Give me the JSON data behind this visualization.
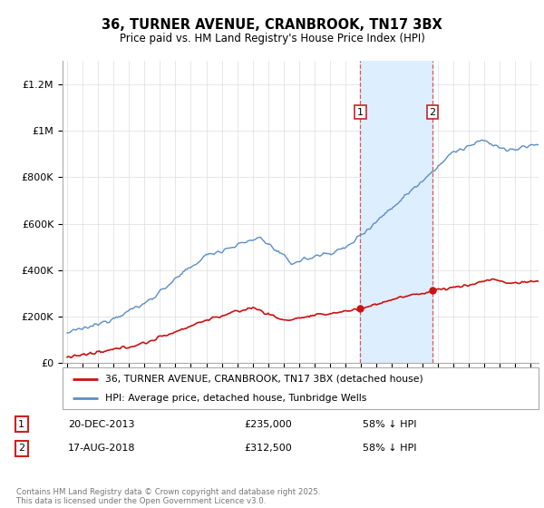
{
  "title": "36, TURNER AVENUE, CRANBROOK, TN17 3BX",
  "subtitle": "Price paid vs. HM Land Registry's House Price Index (HPI)",
  "ylabel_ticks": [
    "£0",
    "£200K",
    "£400K",
    "£600K",
    "£800K",
    "£1M",
    "£1.2M"
  ],
  "ytick_values": [
    0,
    200000,
    400000,
    600000,
    800000,
    1000000,
    1200000
  ],
  "ylim": [
    0,
    1300000
  ],
  "xlim_start": 1994.7,
  "xlim_end": 2025.5,
  "hpi_color": "#5b8ec4",
  "hpi_fill_color": "#ddeeff",
  "price_color": "#cc1111",
  "marker1_x": 2013.97,
  "marker1_y": 235000,
  "marker2_x": 2018.63,
  "marker2_y": 312500,
  "legend_line1": "36, TURNER AVENUE, CRANBROOK, TN17 3BX (detached house)",
  "legend_line2": "HPI: Average price, detached house, Tunbridge Wells",
  "table_row1_num": "1",
  "table_row1_date": "20-DEC-2013",
  "table_row1_price": "£235,000",
  "table_row1_hpi": "58% ↓ HPI",
  "table_row2_num": "2",
  "table_row2_date": "17-AUG-2018",
  "table_row2_price": "£312,500",
  "table_row2_hpi": "58% ↓ HPI",
  "footer": "Contains HM Land Registry data © Crown copyright and database right 2025.\nThis data is licensed under the Open Government Licence v3.0."
}
